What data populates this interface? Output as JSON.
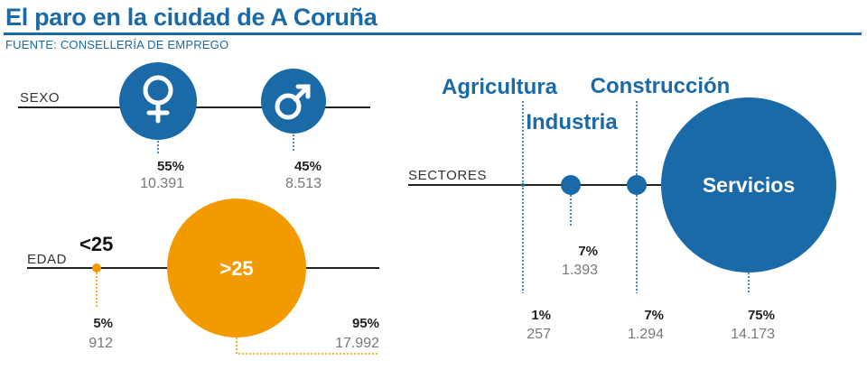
{
  "title": "El paro en la ciudad de A Coruña",
  "source": "FUENTE: CONSELLERÍA DE EMPREGO",
  "colors": {
    "blue": "#1a6aa8",
    "orange": "#f39a00"
  },
  "sexo": {
    "label": "SEXO",
    "items": [
      {
        "icon": "female-symbol-icon",
        "percent": "55%",
        "value": "10.391",
        "share": 55
      },
      {
        "icon": "male-symbol-icon",
        "percent": "45%",
        "value": "8.513",
        "share": 45
      }
    ]
  },
  "edad": {
    "label": "EDAD",
    "items": [
      {
        "name": "<25",
        "percent": "5%",
        "value": "912",
        "share": 5
      },
      {
        "name": ">25",
        "percent": "95%",
        "value": "17.992",
        "share": 95
      }
    ]
  },
  "sectores": {
    "label": "SECTORES",
    "items": [
      {
        "name": "Agricultura",
        "percent": "1%",
        "value": "257",
        "share": 1
      },
      {
        "name": "Industria",
        "percent": "7%",
        "value": "1.393",
        "share": 7
      },
      {
        "name": "Construcción",
        "percent": "7%",
        "value": "1.294",
        "share": 7
      },
      {
        "name": "Servicios",
        "percent": "75%",
        "value": "14.173",
        "share": 75
      }
    ]
  }
}
